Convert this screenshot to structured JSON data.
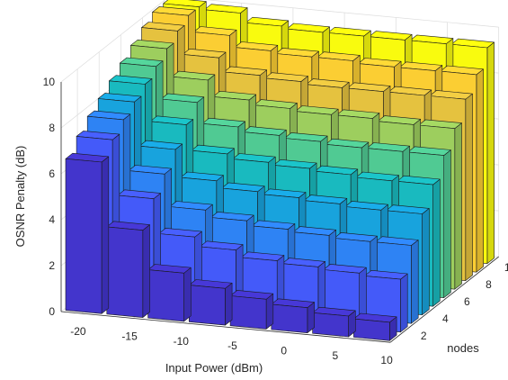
{
  "chart_data": {
    "type": "bar3",
    "title": "",
    "xlabel": "Input Power (dBm)",
    "ylabel": "nodes",
    "zlabel": "OSNR Penalty (dB)",
    "x": [
      -20,
      -16,
      -12,
      -8,
      -4,
      0,
      4,
      8
    ],
    "y": [
      1,
      2,
      3,
      4,
      5,
      6,
      7,
      8,
      9,
      10
    ],
    "x_ticks": [
      -20,
      -15,
      -10,
      -5,
      0,
      5,
      10
    ],
    "y_ticks": [
      2,
      4,
      6,
      8,
      10
    ],
    "z_ticks": [
      0,
      2,
      4,
      6,
      8,
      10
    ],
    "xlim": [
      -22,
      10
    ],
    "ylim": [
      0.5,
      10.5
    ],
    "zlim": [
      0,
      10
    ],
    "grid": true,
    "colormap": "parula",
    "values": [
      [
        6.6,
        3.8,
        2.1,
        1.6,
        1.3,
        1.1,
        0.9,
        0.8
      ],
      [
        7.2,
        4.8,
        3.3,
        2.9,
        2.6,
        2.5,
        2.4,
        2.3
      ],
      [
        7.7,
        5.5,
        4.1,
        3.8,
        3.6,
        3.5,
        3.4,
        3.4
      ],
      [
        8.1,
        6.2,
        5.0,
        4.7,
        4.6,
        4.5,
        4.4,
        4.4
      ],
      [
        8.5,
        6.9,
        5.8,
        5.6,
        5.5,
        5.4,
        5.3,
        5.3
      ],
      [
        8.9,
        7.5,
        6.6,
        6.4,
        6.3,
        6.2,
        6.2,
        6.2
      ],
      [
        9.3,
        8.1,
        7.4,
        7.2,
        7.1,
        7.1,
        7.0,
        7.0
      ],
      [
        9.7,
        8.7,
        8.1,
        8.0,
        7.9,
        7.9,
        7.9,
        7.9
      ],
      [
        10.2,
        9.3,
        8.8,
        8.7,
        8.7,
        8.6,
        8.6,
        8.6
      ],
      [
        11.0,
        9.9,
        9.5,
        9.4,
        9.4,
        9.4,
        9.4,
        9.4
      ]
    ]
  }
}
